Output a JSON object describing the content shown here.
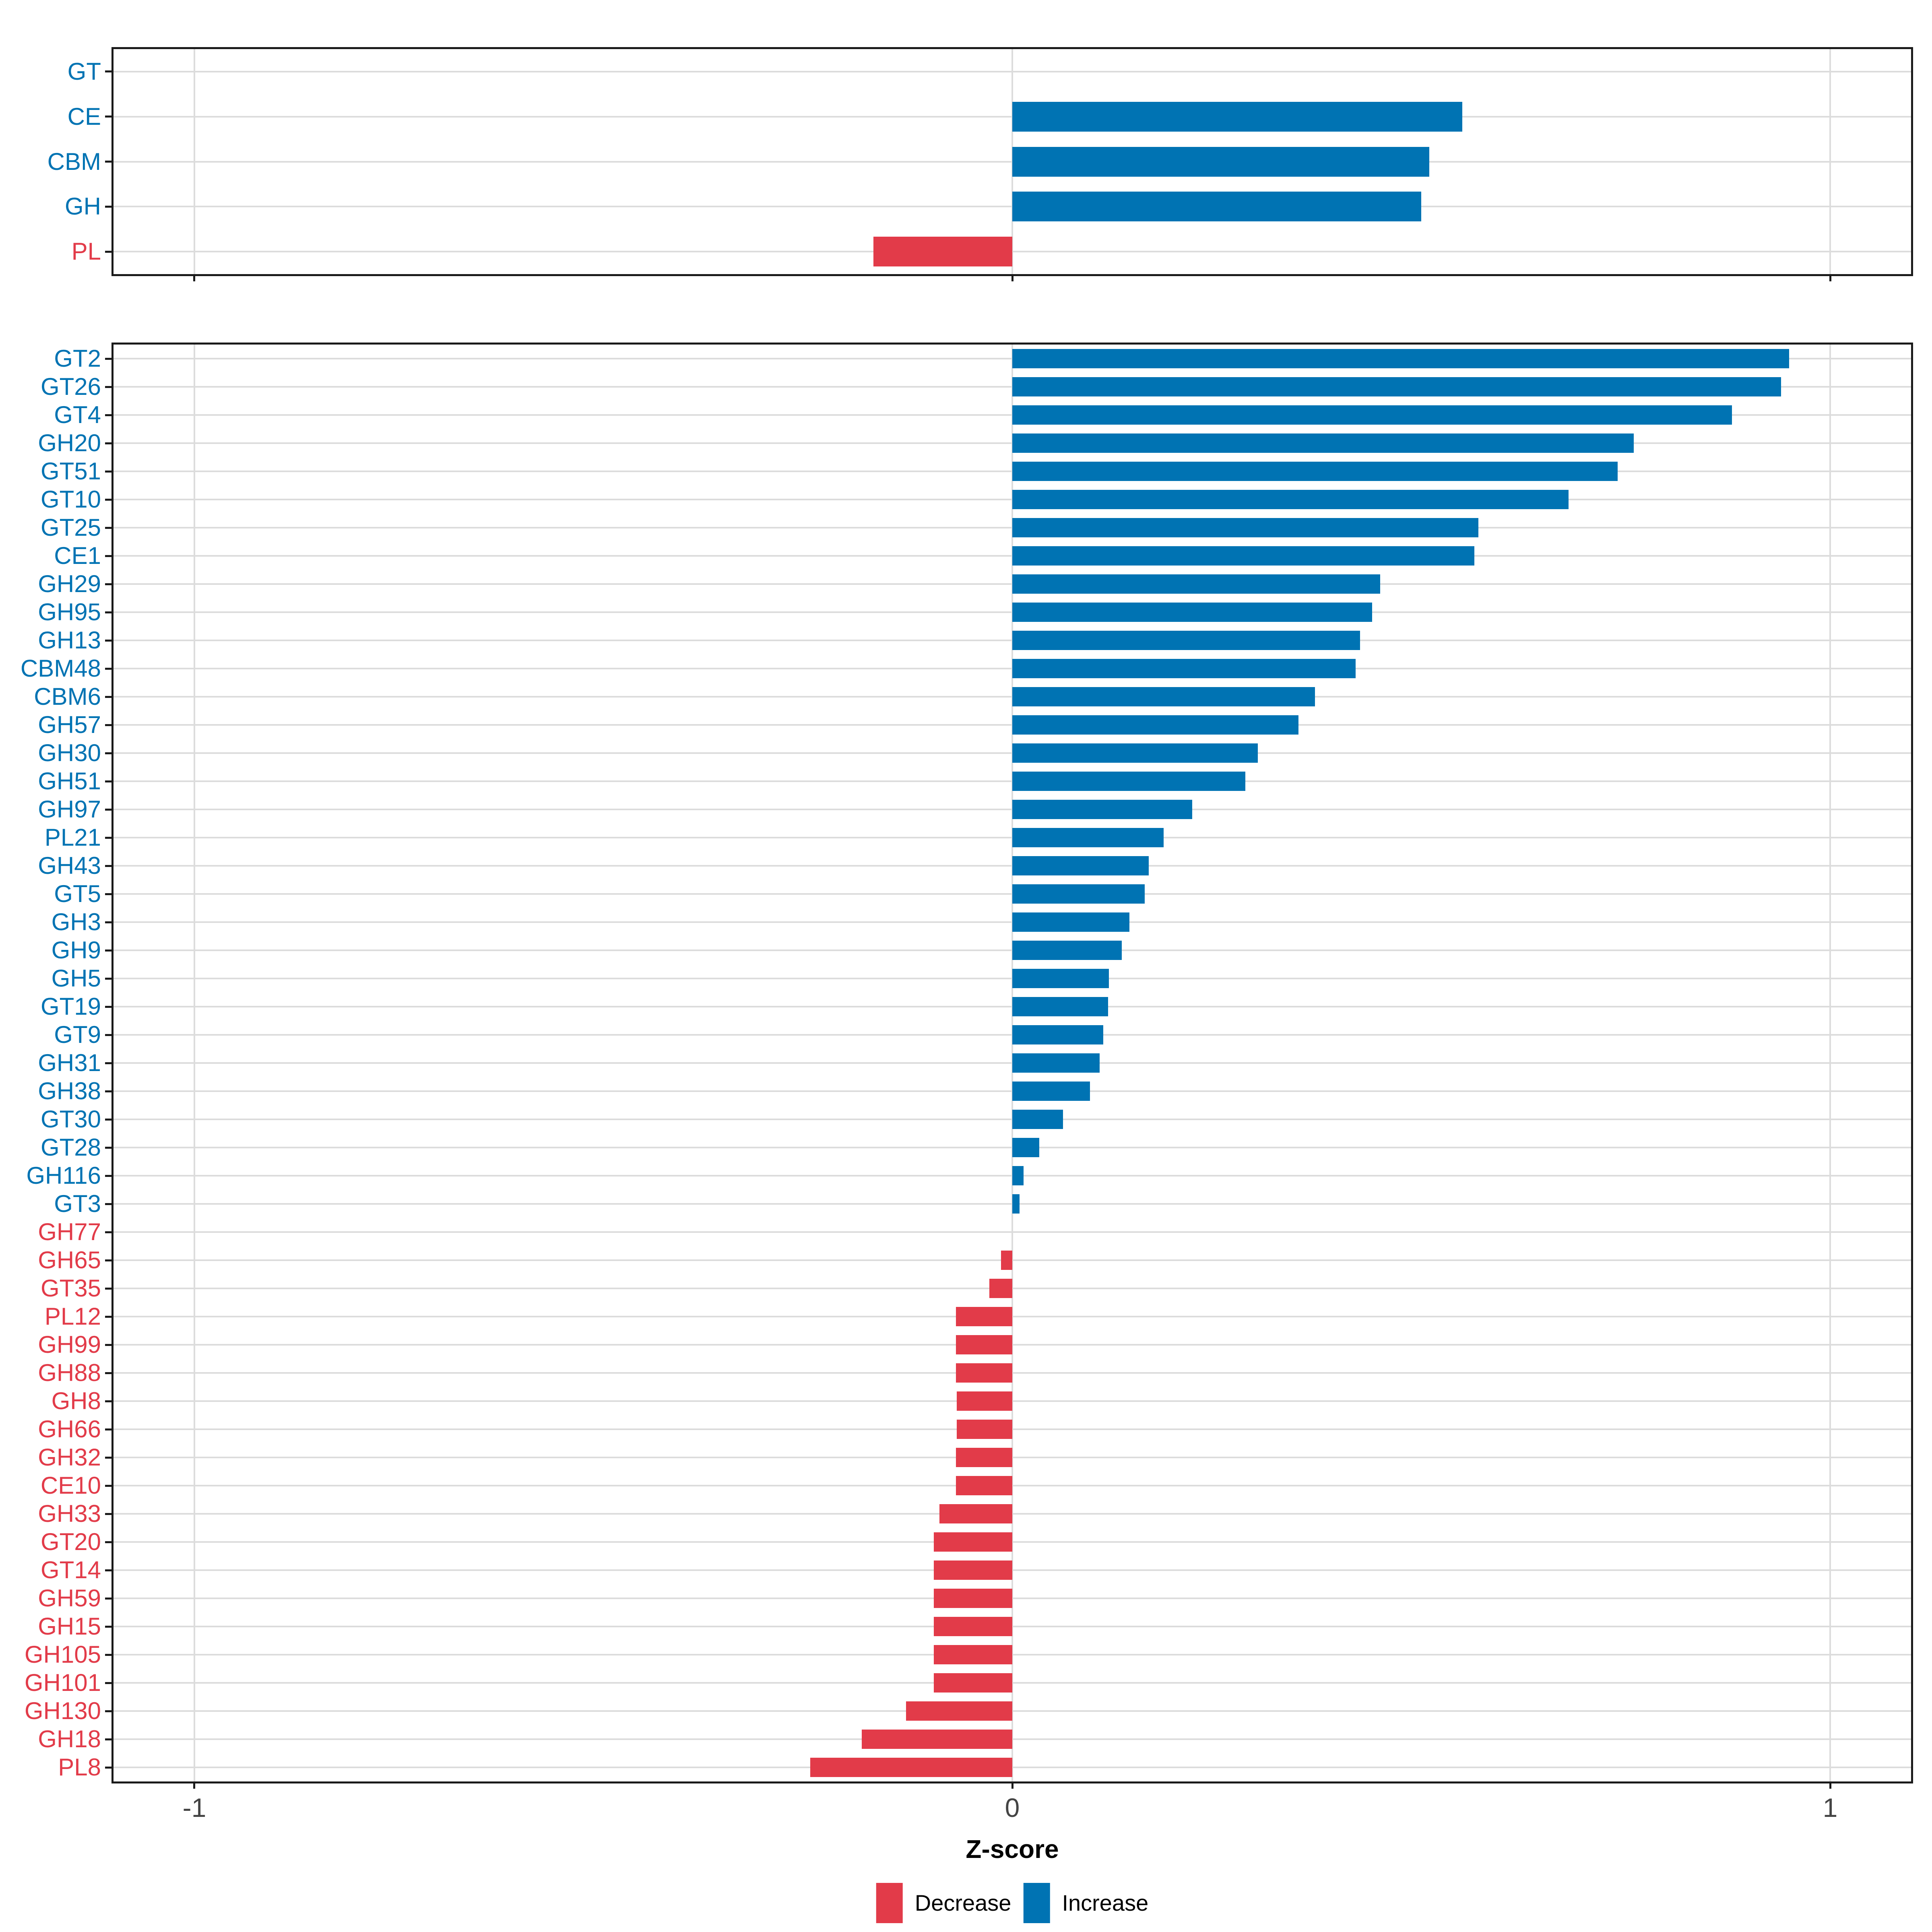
{
  "figure": {
    "xlabel": "Z-score",
    "x_tick_labels": [
      "-1",
      "0",
      "1"
    ],
    "legend": {
      "decrease_label": "Decrease",
      "increase_label": "Increase"
    }
  },
  "colors": {
    "increase": "#0073B3",
    "decrease": "#E23B49",
    "grid": "#DCDCDC",
    "panel_border": "#1A1A1A",
    "tick_label": "#444444",
    "background": "#FFFFFF"
  },
  "chart_data": [
    {
      "type": "bar",
      "orientation": "horizontal",
      "panel": "summary",
      "title": "",
      "xlabel": "Z-score",
      "ylabel": "",
      "xlim": [
        -1.1,
        1.1
      ],
      "xticks": [
        -1,
        0,
        1
      ],
      "grid": true,
      "legend_position": "bottom",
      "categories": [
        "GT",
        "CE",
        "CBM",
        "GH",
        "PL"
      ],
      "values": [
        0,
        0.55,
        0.51,
        0.5,
        -0.17
      ],
      "directions": [
        "increase",
        "increase",
        "increase",
        "increase",
        "decrease"
      ]
    },
    {
      "type": "bar",
      "orientation": "horizontal",
      "panel": "families",
      "title": "",
      "xlabel": "Z-score",
      "ylabel": "",
      "xlim": [
        -1.1,
        1.1
      ],
      "xticks": [
        -1,
        0,
        1
      ],
      "grid": true,
      "legend_position": "bottom",
      "categories": [
        "GT2",
        "GT26",
        "GT4",
        "GH20",
        "GT51",
        "GT10",
        "GT25",
        "CE1",
        "GH29",
        "GH95",
        "GH13",
        "CBM48",
        "CBM6",
        "GH57",
        "GH30",
        "GH51",
        "GH97",
        "PL21",
        "GH43",
        "GT5",
        "GH3",
        "GH9",
        "GH5",
        "GT19",
        "GT9",
        "GH31",
        "GH38",
        "GT30",
        "GT28",
        "GH116",
        "GT3",
        "GH77",
        "GH65",
        "GT35",
        "PL12",
        "GH99",
        "GH88",
        "GH8",
        "GH66",
        "GH32",
        "CE10",
        "GH33",
        "GT20",
        "GT14",
        "GH59",
        "GH15",
        "GH105",
        "GH101",
        "GH130",
        "GH18",
        "PL8"
      ],
      "values": [
        0.95,
        0.94,
        0.88,
        0.76,
        0.74,
        0.68,
        0.57,
        0.565,
        0.45,
        0.44,
        0.425,
        0.42,
        0.37,
        0.35,
        0.3,
        0.285,
        0.22,
        0.185,
        0.167,
        0.162,
        0.143,
        0.134,
        0.118,
        0.117,
        0.111,
        0.107,
        0.095,
        0.062,
        0.033,
        0.014,
        0.009,
        0,
        -0.014,
        -0.028,
        -0.069,
        -0.069,
        -0.069,
        -0.068,
        -0.068,
        -0.069,
        -0.069,
        -0.089,
        -0.096,
        -0.096,
        -0.096,
        -0.096,
        -0.096,
        -0.096,
        -0.13,
        -0.184,
        -0.247
      ],
      "directions": [
        "increase",
        "increase",
        "increase",
        "increase",
        "increase",
        "increase",
        "increase",
        "increase",
        "increase",
        "increase",
        "increase",
        "increase",
        "increase",
        "increase",
        "increase",
        "increase",
        "increase",
        "increase",
        "increase",
        "increase",
        "increase",
        "increase",
        "increase",
        "increase",
        "increase",
        "increase",
        "increase",
        "increase",
        "increase",
        "increase",
        "increase",
        "decrease",
        "decrease",
        "decrease",
        "decrease",
        "decrease",
        "decrease",
        "decrease",
        "decrease",
        "decrease",
        "decrease",
        "decrease",
        "decrease",
        "decrease",
        "decrease",
        "decrease",
        "decrease",
        "decrease",
        "decrease",
        "decrease",
        "decrease"
      ]
    }
  ]
}
